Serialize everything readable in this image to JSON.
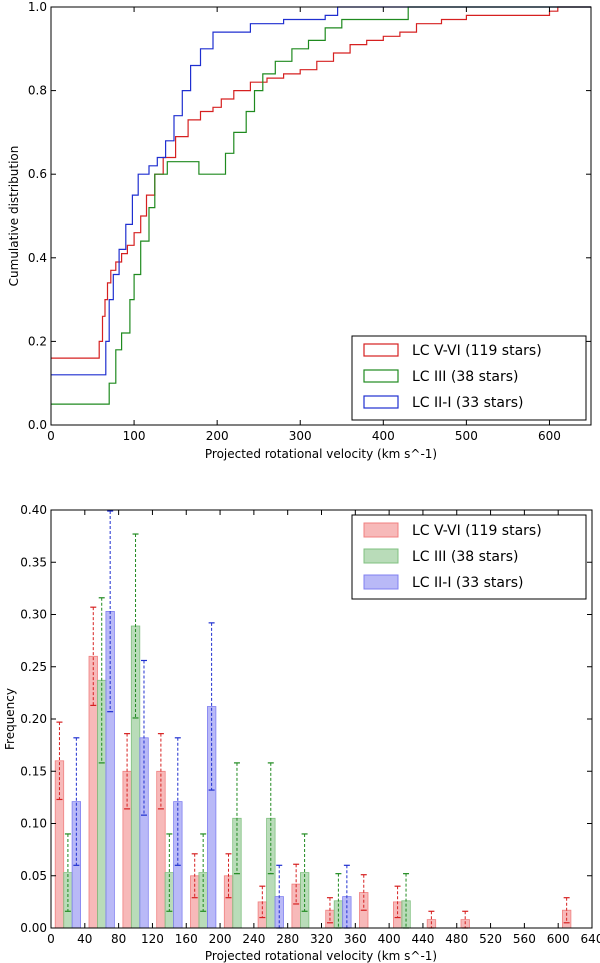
{
  "chart_data": [
    {
      "type": "line",
      "step": true,
      "title": "",
      "xlabel": "Projected rotational velocity (km s^-1)",
      "ylabel": "Cumulative distribution",
      "xlim": [
        0,
        650
      ],
      "ylim": [
        0,
        1.0
      ],
      "xticks": [
        "0",
        "100",
        "200",
        "300",
        "400",
        "500",
        "600"
      ],
      "yticks": [
        "0.0",
        "0.2",
        "0.4",
        "0.6",
        "0.8",
        "1.0"
      ],
      "legend_position": "lower-right",
      "series": [
        {
          "name": "LC V-VI (119 stars)",
          "color": "#d62020",
          "points": [
            [
              0,
              0.16
            ],
            [
              55,
              0.16
            ],
            [
              58,
              0.2
            ],
            [
              62,
              0.26
            ],
            [
              65,
              0.3
            ],
            [
              68,
              0.34
            ],
            [
              72,
              0.37
            ],
            [
              78,
              0.39
            ],
            [
              85,
              0.41
            ],
            [
              92,
              0.43
            ],
            [
              100,
              0.46
            ],
            [
              108,
              0.5
            ],
            [
              115,
              0.55
            ],
            [
              125,
              0.6
            ],
            [
              135,
              0.64
            ],
            [
              150,
              0.69
            ],
            [
              165,
              0.73
            ],
            [
              180,
              0.75
            ],
            [
              195,
              0.76
            ],
            [
              205,
              0.78
            ],
            [
              220,
              0.8
            ],
            [
              240,
              0.82
            ],
            [
              260,
              0.83
            ],
            [
              280,
              0.84
            ],
            [
              300,
              0.85
            ],
            [
              320,
              0.87
            ],
            [
              340,
              0.89
            ],
            [
              360,
              0.91
            ],
            [
              380,
              0.92
            ],
            [
              400,
              0.93
            ],
            [
              420,
              0.94
            ],
            [
              440,
              0.96
            ],
            [
              470,
              0.97
            ],
            [
              500,
              0.98
            ],
            [
              600,
              0.99
            ],
            [
              610,
              1.0
            ]
          ]
        },
        {
          "name": "LC III (38 stars)",
          "color": "#1f8a1f",
          "points": [
            [
              0,
              0.05
            ],
            [
              65,
              0.05
            ],
            [
              70,
              0.1
            ],
            [
              78,
              0.18
            ],
            [
              85,
              0.22
            ],
            [
              95,
              0.3
            ],
            [
              100,
              0.36
            ],
            [
              108,
              0.44
            ],
            [
              118,
              0.52
            ],
            [
              125,
              0.6
            ],
            [
              140,
              0.63
            ],
            [
              160,
              0.63
            ],
            [
              178,
              0.6
            ],
            [
              200,
              0.6
            ],
            [
              210,
              0.65
            ],
            [
              220,
              0.7
            ],
            [
              235,
              0.75
            ],
            [
              245,
              0.8
            ],
            [
              255,
              0.84
            ],
            [
              270,
              0.87
            ],
            [
              290,
              0.9
            ],
            [
              310,
              0.92
            ],
            [
              330,
              0.95
            ],
            [
              350,
              0.97
            ],
            [
              430,
              1.0
            ]
          ]
        },
        {
          "name": "LC II-I (33 stars)",
          "color": "#1f2fd0",
          "points": [
            [
              0,
              0.12
            ],
            [
              62,
              0.12
            ],
            [
              66,
              0.2
            ],
            [
              70,
              0.3
            ],
            [
              75,
              0.36
            ],
            [
              82,
              0.42
            ],
            [
              90,
              0.48
            ],
            [
              98,
              0.55
            ],
            [
              105,
              0.6
            ],
            [
              118,
              0.62
            ],
            [
              128,
              0.64
            ],
            [
              138,
              0.68
            ],
            [
              148,
              0.74
            ],
            [
              158,
              0.8
            ],
            [
              168,
              0.86
            ],
            [
              180,
              0.9
            ],
            [
              195,
              0.94
            ],
            [
              240,
              0.96
            ],
            [
              280,
              0.97
            ],
            [
              330,
              0.98
            ],
            [
              345,
              1.0
            ]
          ]
        }
      ]
    },
    {
      "type": "bar",
      "title": "",
      "xlabel": "Projected rotational velocity (km s^-1)",
      "ylabel": "Frequency",
      "xlim": [
        0,
        640
      ],
      "ylim": [
        0,
        0.4
      ],
      "xticks": [
        "0",
        "40",
        "80",
        "120",
        "160",
        "200",
        "240",
        "280",
        "320",
        "360",
        "400",
        "440",
        "480",
        "520",
        "560",
        "600",
        "640"
      ],
      "yticks": [
        "0.00",
        "0.05",
        "0.10",
        "0.15",
        "0.20",
        "0.25",
        "0.30",
        "0.35",
        "0.40"
      ],
      "legend_position": "top-right",
      "bin_centers": [
        20,
        60,
        100,
        140,
        180,
        220,
        260,
        300,
        340,
        380,
        420,
        460,
        500,
        620
      ],
      "series": [
        {
          "name": "LC V-VI (119 stars)",
          "color": "#f08080",
          "err_color": "#d62020",
          "values": [
            0.16,
            0.26,
            0.15,
            0.15,
            0.05,
            0.05,
            0.025,
            0.042,
            0.017,
            0.034,
            0.025,
            0.008,
            0.008,
            0.017
          ],
          "errors": [
            0.037,
            0.047,
            0.036,
            0.036,
            0.021,
            0.021,
            0.015,
            0.019,
            0.012,
            0.017,
            0.015,
            0.008,
            0.008,
            0.012
          ]
        },
        {
          "name": "LC III (38 stars)",
          "color": "#80c080",
          "err_color": "#1f8a1f",
          "values": [
            0.053,
            0.237,
            0.289,
            0.053,
            0.053,
            0.105,
            0.105,
            0.053,
            0.026,
            0,
            0.026,
            0,
            0,
            0
          ],
          "errors": [
            0.037,
            0.079,
            0.088,
            0.037,
            0.037,
            0.053,
            0.053,
            0.037,
            0.026,
            0,
            0.026,
            0,
            0,
            0
          ]
        },
        {
          "name": "LC II-I (33 stars)",
          "color": "#8080f0",
          "err_color": "#1f2fd0",
          "values": [
            0.121,
            0.303,
            0.182,
            0.121,
            0.212,
            0,
            0.03,
            0,
            0.03,
            0,
            0,
            0,
            0,
            0
          ],
          "errors": [
            0.061,
            0.096,
            0.074,
            0.061,
            0.08,
            0,
            0.03,
            0,
            0.03,
            0,
            0,
            0,
            0,
            0
          ]
        }
      ]
    }
  ]
}
